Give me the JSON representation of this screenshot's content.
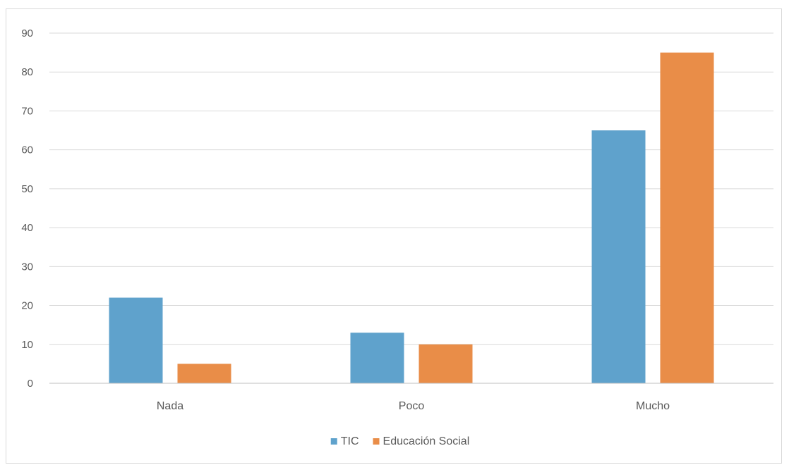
{
  "chart_data": {
    "type": "bar",
    "categories": [
      "Nada",
      "Poco",
      "Mucho"
    ],
    "series": [
      {
        "name": "TIC",
        "values": [
          22,
          13,
          65
        ],
        "color": "#5fa2cc"
      },
      {
        "name": "Educación Social",
        "values": [
          5,
          10,
          85
        ],
        "color": "#e98d48"
      }
    ],
    "ylim": [
      0,
      90
    ],
    "yticks": [
      0,
      10,
      20,
      30,
      40,
      50,
      60,
      70,
      80,
      90
    ],
    "grid": true,
    "legend_position": "bottom",
    "gridline_color": "#d9d9d9",
    "axis_color": "#bfbfbf"
  }
}
